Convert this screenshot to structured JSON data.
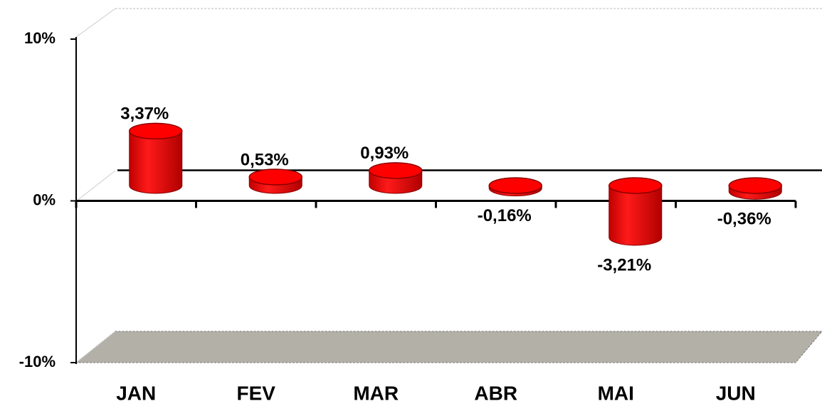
{
  "chart_data": {
    "type": "bar",
    "categories": [
      "JAN",
      "FEV",
      "MAR",
      "ABR",
      "MAI",
      "JUN"
    ],
    "values": [
      3.37,
      0.53,
      0.93,
      -0.16,
      -3.21,
      -0.36
    ],
    "value_labels": [
      "3,37%",
      "0,53%",
      "0,93%",
      "-0,16%",
      "-3,21%",
      "-0,36%"
    ],
    "color": "#ff0000",
    "ylim": [
      -10,
      10
    ],
    "yticks": [
      {
        "value": 10,
        "label": "10%"
      },
      {
        "value": 0,
        "label": "0%"
      },
      {
        "value": -10,
        "label": "-10%"
      }
    ]
  }
}
